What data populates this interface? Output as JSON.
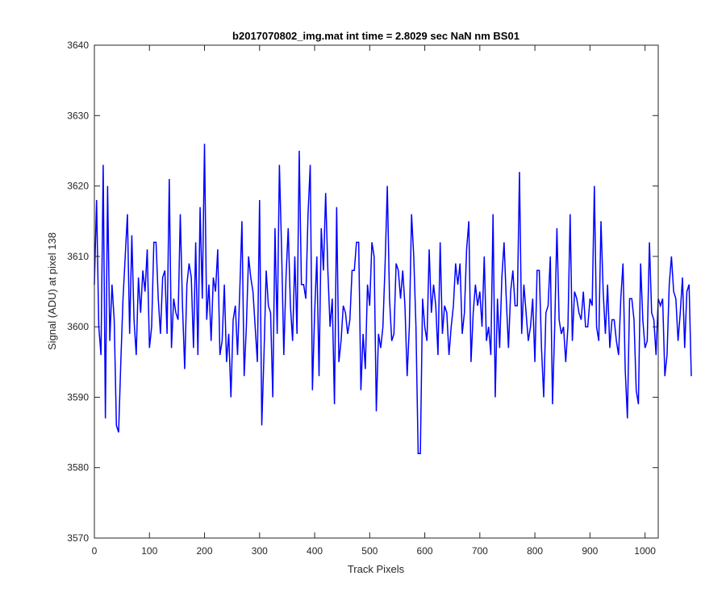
{
  "chart_data": {
    "type": "line",
    "title": "b2017070802_img.mat int time = 2.8029 sec  NaN nm BS01",
    "xlabel": "Track Pixels",
    "ylabel": "Signal (ADU) at pixel 138",
    "xlim": [
      0,
      1024
    ],
    "ylim": [
      3570,
      3640
    ],
    "xticks": [
      0,
      100,
      200,
      300,
      400,
      500,
      600,
      700,
      800,
      900,
      1000
    ],
    "yticks": [
      3570,
      3580,
      3590,
      3600,
      3610,
      3620,
      3630,
      3640
    ],
    "grid": false,
    "line_color": "#0000ff",
    "series": [
      {
        "x_start": 0,
        "x_step": 4,
        "values": [
          3606,
          3618,
          3600,
          3596,
          3623,
          3587,
          3620,
          3598,
          3606,
          3601,
          3586,
          3585,
          3595,
          3604,
          3610,
          3616,
          3599,
          3613,
          3601,
          3596,
          3607,
          3602,
          3608,
          3605,
          3611,
          3597,
          3600,
          3612,
          3612,
          3604,
          3599,
          3607,
          3608,
          3599,
          3621,
          3597,
          3604,
          3602,
          3601,
          3616,
          3603,
          3594,
          3606,
          3609,
          3607,
          3597,
          3612,
          3596,
          3617,
          3604,
          3626,
          3601,
          3606,
          3598,
          3607,
          3605,
          3611,
          3596,
          3598,
          3606,
          3595,
          3599,
          3590,
          3601,
          3603,
          3596,
          3605,
          3615,
          3593,
          3600,
          3610,
          3607,
          3605,
          3600,
          3595,
          3618,
          3586,
          3596,
          3608,
          3603,
          3602,
          3590,
          3614,
          3599,
          3623,
          3611,
          3596,
          3607,
          3614,
          3603,
          3598,
          3610,
          3599,
          3625,
          3606,
          3606,
          3604,
          3616,
          3623,
          3591,
          3602,
          3610,
          3593,
          3614,
          3608,
          3619,
          3608,
          3600,
          3604,
          3589,
          3617,
          3595,
          3598,
          3603,
          3602,
          3599,
          3601,
          3608,
          3608,
          3612,
          3612,
          3591,
          3599,
          3594,
          3606,
          3603,
          3612,
          3610,
          3588,
          3599,
          3597,
          3600,
          3609,
          3620,
          3604,
          3598,
          3599,
          3609,
          3608,
          3604,
          3608,
          3603,
          3593,
          3600,
          3616,
          3610,
          3600,
          3582,
          3582,
          3604,
          3600,
          3598,
          3611,
          3602,
          3606,
          3603,
          3596,
          3612,
          3599,
          3603,
          3602,
          3596,
          3600,
          3603,
          3609,
          3606,
          3609,
          3599,
          3602,
          3611,
          3615,
          3595,
          3602,
          3606,
          3603,
          3605,
          3600,
          3610,
          3598,
          3600,
          3596,
          3616,
          3590,
          3604,
          3597,
          3607,
          3612,
          3604,
          3597,
          3605,
          3608,
          3603,
          3603,
          3622,
          3599,
          3606,
          3602,
          3598,
          3600,
          3604,
          3595,
          3608,
          3608,
          3597,
          3590,
          3602,
          3603,
          3610,
          3589,
          3600,
          3614,
          3601,
          3599,
          3600,
          3595,
          3600,
          3616,
          3598,
          3605,
          3604,
          3602,
          3601,
          3605,
          3600,
          3600,
          3604,
          3603,
          3620,
          3600,
          3598,
          3615,
          3605,
          3599,
          3606,
          3597,
          3601,
          3601,
          3598,
          3596,
          3604,
          3609,
          3594,
          3587,
          3604,
          3604,
          3601,
          3591,
          3589,
          3609,
          3601,
          3597,
          3598,
          3612,
          3602,
          3601,
          3596,
          3604,
          3603,
          3604,
          3593,
          3596,
          3606,
          3610,
          3605,
          3604,
          3598,
          3602,
          3607,
          3597,
          3605,
          3606,
          3593
        ]
      }
    ]
  }
}
